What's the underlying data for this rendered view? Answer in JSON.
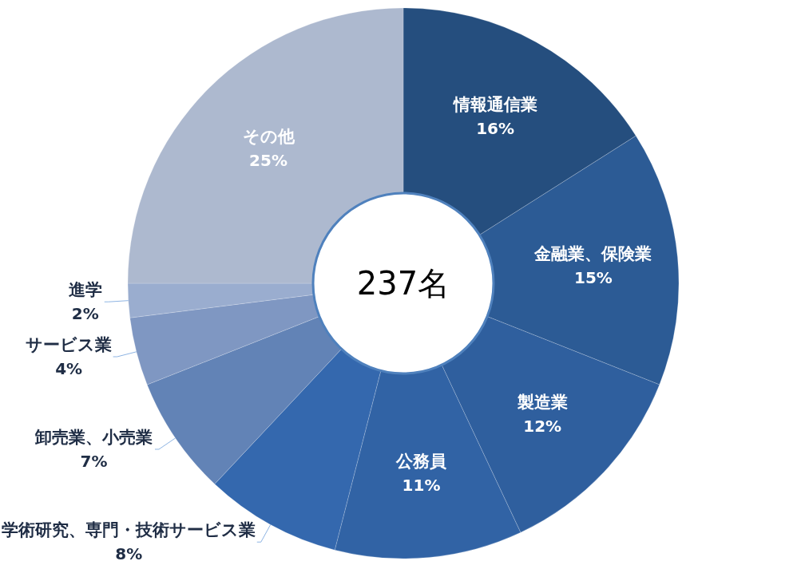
{
  "chart_data": {
    "type": "donut",
    "categories": [
      "情報通信業",
      "金融業、保険業",
      "製造業",
      "公務員",
      "学術研究、専門・技術サービス業",
      "卸売業、小売業",
      "サービス業",
      "進学",
      "その他"
    ],
    "values": [
      16,
      15,
      12,
      11,
      8,
      7,
      4,
      2,
      25
    ],
    "colors": [
      "#254e7e",
      "#2c5b95",
      "#2f5f9e",
      "#3163a5",
      "#3468ae",
      "#6283b6",
      "#7f97c2",
      "#9aadcf",
      "#adb9cf"
    ],
    "value_labels": [
      "16%",
      "15%",
      "12%",
      "11%",
      "8%",
      "7%",
      "4%",
      "2%",
      "25%"
    ],
    "annotations": [
      "237名"
    ]
  }
}
